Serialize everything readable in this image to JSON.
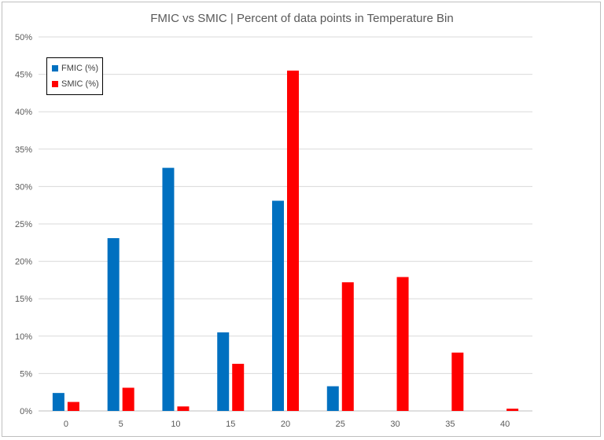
{
  "chart_data": {
    "type": "bar",
    "title": "FMIC vs SMIC | Percent of data points in Temperature Bin",
    "xlabel": "",
    "ylabel": "",
    "categories": [
      "0",
      "5",
      "10",
      "15",
      "20",
      "25",
      "30",
      "35",
      "40"
    ],
    "series": [
      {
        "name": "FMIC (%)",
        "color": "#0070c0",
        "values": [
          2.4,
          23.1,
          32.5,
          10.5,
          28.1,
          3.3,
          0,
          0,
          0
        ]
      },
      {
        "name": "SMIC (%)",
        "color": "#ff0000",
        "values": [
          1.2,
          3.1,
          0.6,
          6.3,
          45.5,
          17.2,
          17.9,
          7.8,
          0.3
        ]
      }
    ],
    "ylim": [
      0,
      50
    ],
    "yticks": [
      "0%",
      "5%",
      "10%",
      "15%",
      "20%",
      "25%",
      "30%",
      "35%",
      "40%",
      "45%",
      "50%"
    ],
    "grid": true,
    "legend_position": "top-left"
  }
}
